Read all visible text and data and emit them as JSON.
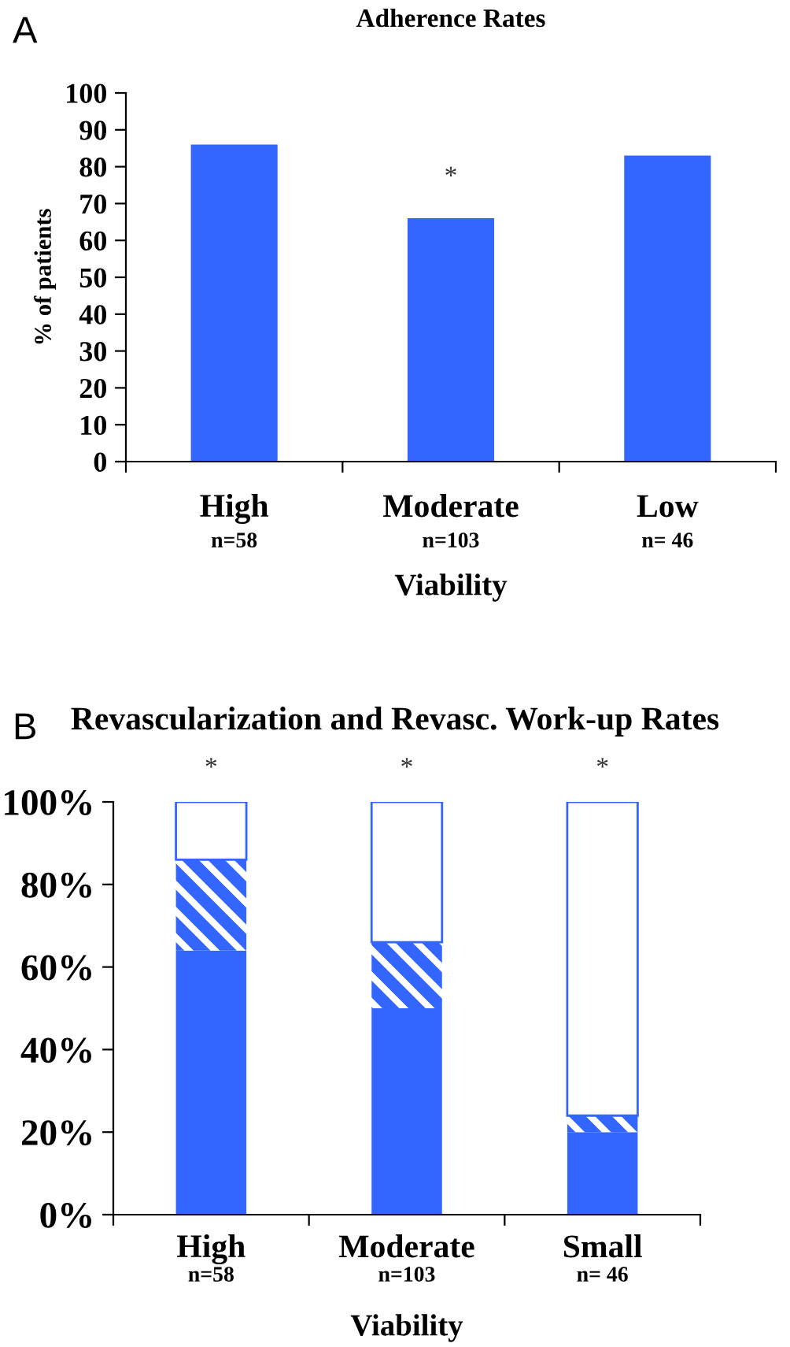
{
  "chart_data": [
    {
      "type": "bar",
      "title": "Adherence Rates",
      "xlabel": "Viability",
      "ylabel": "% of patients",
      "categories": [
        "High\nn=58",
        "Moderate\nn=103",
        "Low\nn= 46"
      ],
      "values": [
        86,
        66,
        83
      ],
      "color": "#3366ff",
      "ylim": [
        0,
        100
      ],
      "yticks": [
        0,
        10,
        20,
        30,
        40,
        50,
        60,
        70,
        80,
        90,
        100
      ],
      "grid": false,
      "legend": false,
      "annotations": [
        "A",
        "*"
      ]
    },
    {
      "type": "bar",
      "title": "Revascularization and Revasc. Work-up Rates",
      "xlabel": "Viability",
      "stacked": true,
      "categories": [
        "High\nn=58",
        "Moderate\nn=103",
        "Small\nn= 46"
      ],
      "series": [
        {
          "color": "#3366ff",
          "values": [
            64,
            50,
            20
          ]
        },
        {
          "color": "#3366ff",
          "values": [
            22,
            16,
            4
          ]
        },
        {
          "color": "#ffffff",
          "values": [
            14,
            34,
            76
          ]
        }
      ],
      "ylim": [
        0,
        100
      ],
      "yticks": [
        {
          "value": 0,
          "label": "0%"
        },
        {
          "value": 20,
          "label": "20%"
        },
        {
          "value": 40,
          "label": "40%"
        },
        {
          "value": 60,
          "label": "60%"
        },
        {
          "value": 80,
          "label": "80%"
        },
        {
          "value": 100,
          "label": "100%"
        }
      ],
      "grid": false,
      "legend": false,
      "annotations": [
        "B",
        "*",
        "*",
        "*"
      ]
    }
  ]
}
